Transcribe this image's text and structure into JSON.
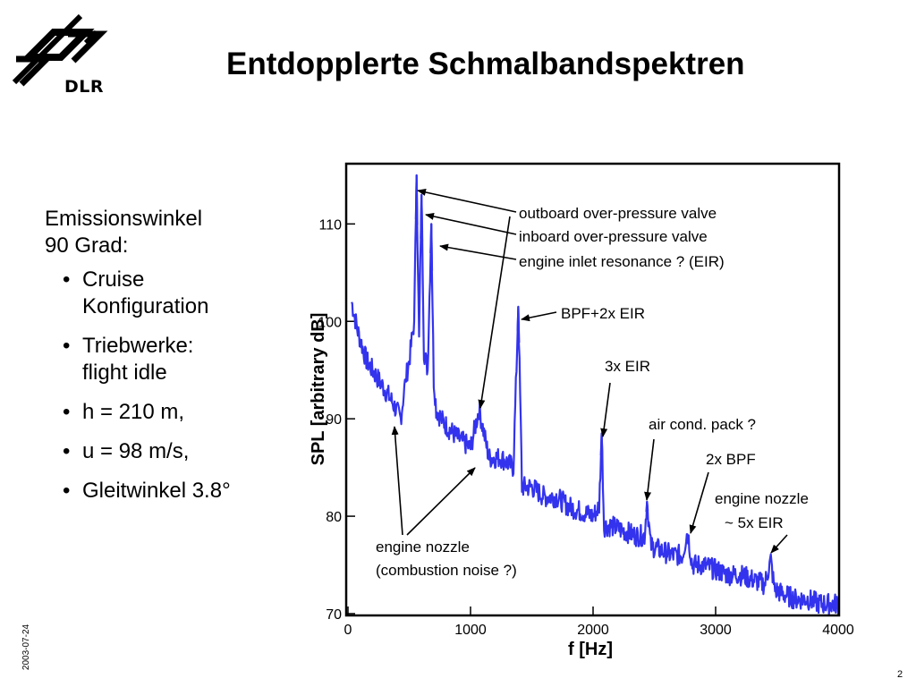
{
  "logo": {
    "text": "DLR"
  },
  "title": "Entdopplerte Schmalbandspektren",
  "sidebar": {
    "heading_line1": "Emissionswinkel",
    "heading_line2": "90 Grad:",
    "bullets": [
      {
        "line1": "Cruise",
        "line2": "Konfiguration"
      },
      {
        "line1": "Triebwerke:",
        "line2": "flight idle"
      },
      {
        "line1": "h = 210 m,",
        "line2": ""
      },
      {
        "line1": "u = 98 m/s,",
        "line2": ""
      },
      {
        "line1": "Gleitwinkel 3.8°",
        "line2": ""
      }
    ]
  },
  "footer": {
    "date": "2003-07-24",
    "page": "2"
  },
  "colors": {
    "series": "#3333ee",
    "frame": "#000000"
  },
  "chart_data": {
    "type": "line",
    "xlabel": "f [Hz]",
    "ylabel": "SPL [arbitrary dB]",
    "xlim": [
      0,
      4000
    ],
    "ylim": [
      70,
      116
    ],
    "xticks": [
      0,
      1000,
      2000,
      3000,
      4000
    ],
    "yticks": [
      70,
      80,
      90,
      100,
      110
    ],
    "grid": false,
    "series": [
      {
        "x": [
          30,
          80,
          150,
          250,
          350,
          430,
          470,
          500,
          540,
          560,
          580,
          600,
          620,
          650,
          680,
          700,
          720,
          760,
          820,
          900,
          1000,
          1070,
          1150,
          1250,
          1350,
          1390,
          1420,
          1500,
          1600,
          1700,
          1800,
          1900,
          2000,
          2050,
          2070,
          2090,
          2150,
          2250,
          2350,
          2420,
          2440,
          2470,
          2550,
          2650,
          2730,
          2770,
          2810,
          2900,
          3000,
          3100,
          3200,
          3300,
          3400,
          3450,
          3480,
          3550,
          3650,
          3750,
          3850,
          3950,
          4000
        ],
        "y": [
          102,
          99,
          96,
          94,
          92,
          90,
          94,
          96,
          100,
          115,
          98,
          113,
          97,
          95,
          110,
          94,
          91,
          90,
          89,
          88,
          87,
          91,
          86,
          86,
          85,
          101.5,
          83,
          83,
          82,
          82,
          81,
          80.5,
          80,
          81,
          88.5,
          79,
          79,
          78.5,
          78,
          78,
          81.5,
          77,
          76.5,
          76,
          76,
          78.5,
          75,
          75,
          74.5,
          74,
          74,
          73.5,
          73,
          75.5,
          72.5,
          72,
          71.5,
          71.5,
          71,
          71,
          71
        ]
      }
    ],
    "annotations": [
      {
        "text": "outboard over-pressure valve"
      },
      {
        "text": "inboard over-pressure valve"
      },
      {
        "text": "engine inlet resonance ? (EIR)"
      },
      {
        "text": "BPF+2x EIR"
      },
      {
        "text": "3x EIR"
      },
      {
        "text": "air cond. pack ?"
      },
      {
        "text": "2x BPF"
      },
      {
        "text": "engine nozzle"
      },
      {
        "text": "~ 5x EIR"
      },
      {
        "text": "engine nozzle"
      },
      {
        "text": "(combustion noise ?)"
      }
    ]
  }
}
